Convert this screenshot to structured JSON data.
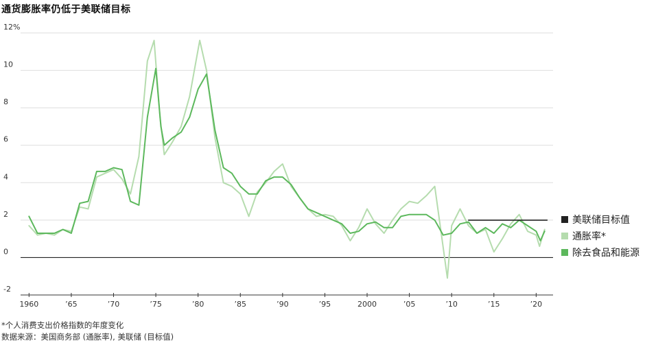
{
  "title": "通货膨胀率仍低于美联储目标",
  "footnote": "*个人消费支出价格指数的年度变化",
  "source": "数据来源：美国商务部 (通胀率), 美联储 (目标值)",
  "legend": [
    {
      "label": "美联储目标值",
      "color": "#222222"
    },
    {
      "label": "通胀率*",
      "color": "#b5dcae"
    },
    {
      "label": "除去食品和能源",
      "color": "#5cb85c"
    }
  ],
  "chart_data": {
    "type": "line",
    "xlim": [
      1959,
      2022
    ],
    "ylim": [
      -2,
      12
    ],
    "y_ticks": [
      {
        "value": 12,
        "label": "12%"
      },
      {
        "value": 10,
        "label": "10"
      },
      {
        "value": 8,
        "label": "8"
      },
      {
        "value": 6,
        "label": "6"
      },
      {
        "value": 4,
        "label": "4"
      },
      {
        "value": 2,
        "label": "2"
      },
      {
        "value": 0,
        "label": "0"
      },
      {
        "value": -2,
        "label": "-2"
      }
    ],
    "x_ticks": [
      {
        "value": 1960,
        "label": "1960"
      },
      {
        "value": 1965,
        "label": "’65"
      },
      {
        "value": 1970,
        "label": "’70"
      },
      {
        "value": 1975,
        "label": "’75"
      },
      {
        "value": 1980,
        "label": "’80"
      },
      {
        "value": 1985,
        "label": "’85"
      },
      {
        "value": 1990,
        "label": "’90"
      },
      {
        "value": 1995,
        "label": "’95"
      },
      {
        "value": 2000,
        "label": "2000"
      },
      {
        "value": 2005,
        "label": "’05"
      },
      {
        "value": 2010,
        "label": "’10"
      },
      {
        "value": 2015,
        "label": "’15"
      },
      {
        "value": 2020,
        "label": "’20"
      }
    ],
    "grid": true,
    "series": [
      {
        "name": "通胀率*",
        "color": "#b5dcae",
        "points": [
          [
            1960,
            1.7
          ],
          [
            1961,
            1.2
          ],
          [
            1962,
            1.3
          ],
          [
            1963,
            1.2
          ],
          [
            1964,
            1.5
          ],
          [
            1965,
            1.4
          ],
          [
            1966,
            2.7
          ],
          [
            1967,
            2.6
          ],
          [
            1968,
            4.3
          ],
          [
            1969,
            4.5
          ],
          [
            1970,
            4.7
          ],
          [
            1971,
            4.2
          ],
          [
            1972,
            3.4
          ],
          [
            1973,
            5.4
          ],
          [
            1974,
            10.5
          ],
          [
            1974.8,
            11.6
          ],
          [
            1975.5,
            7.5
          ],
          [
            1976,
            5.5
          ],
          [
            1977,
            6.2
          ],
          [
            1978,
            7.0
          ],
          [
            1979,
            8.6
          ],
          [
            1980.2,
            11.6
          ],
          [
            1981,
            10.0
          ],
          [
            1982,
            6.4
          ],
          [
            1983,
            4.0
          ],
          [
            1984,
            3.8
          ],
          [
            1985,
            3.4
          ],
          [
            1986,
            2.2
          ],
          [
            1987,
            3.5
          ],
          [
            1988,
            4.0
          ],
          [
            1989,
            4.6
          ],
          [
            1990,
            5.0
          ],
          [
            1991,
            3.8
          ],
          [
            1992,
            3.2
          ],
          [
            1993,
            2.6
          ],
          [
            1994,
            2.2
          ],
          [
            1995,
            2.3
          ],
          [
            1996,
            2.2
          ],
          [
            1997,
            1.7
          ],
          [
            1998,
            0.9
          ],
          [
            1999,
            1.6
          ],
          [
            2000,
            2.6
          ],
          [
            2001,
            1.8
          ],
          [
            2002,
            1.3
          ],
          [
            2003,
            2.0
          ],
          [
            2004,
            2.6
          ],
          [
            2005,
            3.0
          ],
          [
            2006,
            2.9
          ],
          [
            2007,
            3.3
          ],
          [
            2008,
            3.8
          ],
          [
            2008.8,
            1.2
          ],
          [
            2009.5,
            -1.1
          ],
          [
            2010,
            1.7
          ],
          [
            2011,
            2.6
          ],
          [
            2012,
            1.7
          ],
          [
            2013,
            1.3
          ],
          [
            2014,
            1.5
          ],
          [
            2015,
            0.3
          ],
          [
            2016,
            1.0
          ],
          [
            2017,
            1.8
          ],
          [
            2018,
            2.3
          ],
          [
            2019,
            1.4
          ],
          [
            2020,
            1.2
          ],
          [
            2020.4,
            0.6
          ],
          [
            2021,
            1.5
          ]
        ]
      },
      {
        "name": "除去食品和能源",
        "color": "#5cb85c",
        "points": [
          [
            1960,
            2.2
          ],
          [
            1961,
            1.3
          ],
          [
            1962,
            1.3
          ],
          [
            1963,
            1.3
          ],
          [
            1964,
            1.5
          ],
          [
            1965,
            1.3
          ],
          [
            1966,
            2.9
          ],
          [
            1967,
            3.0
          ],
          [
            1968,
            4.6
          ],
          [
            1969,
            4.6
          ],
          [
            1970,
            4.8
          ],
          [
            1971,
            4.7
          ],
          [
            1972,
            3.0
          ],
          [
            1973,
            2.8
          ],
          [
            1974,
            7.5
          ],
          [
            1975,
            10.1
          ],
          [
            1975.6,
            7.0
          ],
          [
            1976,
            6.0
          ],
          [
            1977,
            6.4
          ],
          [
            1978,
            6.7
          ],
          [
            1979,
            7.5
          ],
          [
            1980,
            9.0
          ],
          [
            1981,
            9.8
          ],
          [
            1982,
            6.8
          ],
          [
            1983,
            4.8
          ],
          [
            1984,
            4.5
          ],
          [
            1985,
            3.8
          ],
          [
            1986,
            3.4
          ],
          [
            1987,
            3.4
          ],
          [
            1988,
            4.1
          ],
          [
            1989,
            4.3
          ],
          [
            1990,
            4.3
          ],
          [
            1991,
            3.9
          ],
          [
            1992,
            3.2
          ],
          [
            1993,
            2.6
          ],
          [
            1994,
            2.4
          ],
          [
            1995,
            2.2
          ],
          [
            1996,
            2.0
          ],
          [
            1997,
            1.8
          ],
          [
            1998,
            1.3
          ],
          [
            1999,
            1.4
          ],
          [
            2000,
            1.8
          ],
          [
            2001,
            1.9
          ],
          [
            2002,
            1.6
          ],
          [
            2003,
            1.6
          ],
          [
            2004,
            2.2
          ],
          [
            2005,
            2.3
          ],
          [
            2006,
            2.3
          ],
          [
            2007,
            2.3
          ],
          [
            2008,
            2.0
          ],
          [
            2009,
            1.2
          ],
          [
            2010,
            1.3
          ],
          [
            2011,
            1.8
          ],
          [
            2012,
            1.9
          ],
          [
            2013,
            1.3
          ],
          [
            2014,
            1.6
          ],
          [
            2015,
            1.3
          ],
          [
            2016,
            1.8
          ],
          [
            2017,
            1.6
          ],
          [
            2018,
            2.0
          ],
          [
            2019,
            1.7
          ],
          [
            2020,
            1.4
          ],
          [
            2020.5,
            0.9
          ],
          [
            2021,
            1.4
          ]
        ]
      },
      {
        "name": "美联储目标值",
        "color": "#222222",
        "points": [
          [
            2012,
            2
          ],
          [
            2021.3,
            2
          ]
        ]
      }
    ]
  }
}
